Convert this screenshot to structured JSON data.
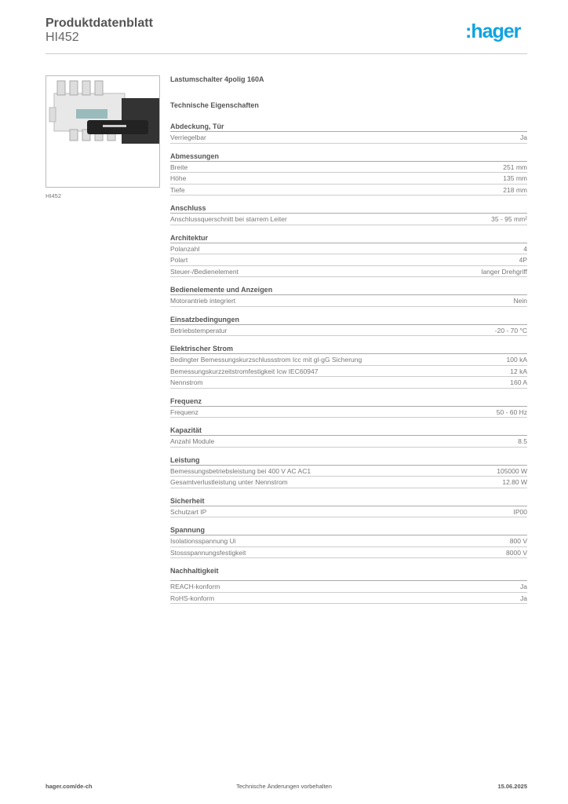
{
  "header": {
    "title": "Produktdatenblatt",
    "code": "HI452",
    "logo": ":hager",
    "logo_color": "#10a3e0"
  },
  "product": {
    "caption": "HI452",
    "name": "Lastumschalter 4polig 160A",
    "section_title": "Technische Eigenschaften"
  },
  "sections": [
    {
      "title": "Abdeckung, Tür",
      "rows": [
        [
          "Verriegelbar",
          "Ja"
        ]
      ]
    },
    {
      "title": "Abmessungen",
      "rows": [
        [
          "Breite",
          "251 mm"
        ],
        [
          "Höhe",
          "135 mm"
        ],
        [
          "Tiefe",
          "218 mm"
        ]
      ]
    },
    {
      "title": "Anschluss",
      "rows": [
        [
          "Anschlussquerschnitt bei starrem Leiter",
          "35 - 95 mm²"
        ]
      ]
    },
    {
      "title": "Architektur",
      "rows": [
        [
          "Polanzahl",
          "4"
        ],
        [
          "Polart",
          "4P"
        ],
        [
          "Steuer-/Bedienelement",
          "langer Drehgriff"
        ]
      ]
    },
    {
      "title": "Bedienelemente und Anzeigen",
      "rows": [
        [
          "Motorantrieb integriert",
          "Nein"
        ]
      ]
    },
    {
      "title": "Einsatzbedingungen",
      "rows": [
        [
          "Betriebstemperatur",
          "-20 - 70 °C"
        ]
      ]
    },
    {
      "title": "Elektrischer Strom",
      "rows": [
        [
          "Bedingter Bemessungskurzschlussstrom Icc mit gl-gG Sicherung",
          "100 kA"
        ],
        [
          "Bemessungskurzzeitstromfestigkeit Icw IEC60947",
          "12 kA"
        ],
        [
          "Nennstrom",
          "160 A"
        ]
      ]
    },
    {
      "title": "Frequenz",
      "rows": [
        [
          "Frequenz",
          "50 - 60 Hz"
        ]
      ]
    },
    {
      "title": "Kapazität",
      "rows": [
        [
          "Anzahl Module",
          "8.5"
        ]
      ]
    },
    {
      "title": "Leistung",
      "rows": [
        [
          "Bemessungsbetriebsleistung bei 400 V AC AC1",
          "105000 W"
        ],
        [
          "Gesamtverlustleistung unter Nennstrom",
          "12.80 W"
        ]
      ]
    },
    {
      "title": "Sicherheit",
      "rows": [
        [
          "Schutzart IP",
          "IP00"
        ]
      ]
    },
    {
      "title": "Spannung",
      "rows": [
        [
          "Isolationsspannung Ui",
          "800 V"
        ],
        [
          "Stossspannungsfestigkeit",
          "8000 V"
        ]
      ]
    },
    {
      "title": "Nachhaltigkeit",
      "rows": [
        [
          "REACH-konform",
          "Ja"
        ],
        [
          "RoHS-konform",
          "Ja"
        ]
      ]
    }
  ],
  "footer": {
    "left": "hager.com/de-ch",
    "center": "Technische Änderungen vorbehalten",
    "right": "15.06.2025"
  }
}
